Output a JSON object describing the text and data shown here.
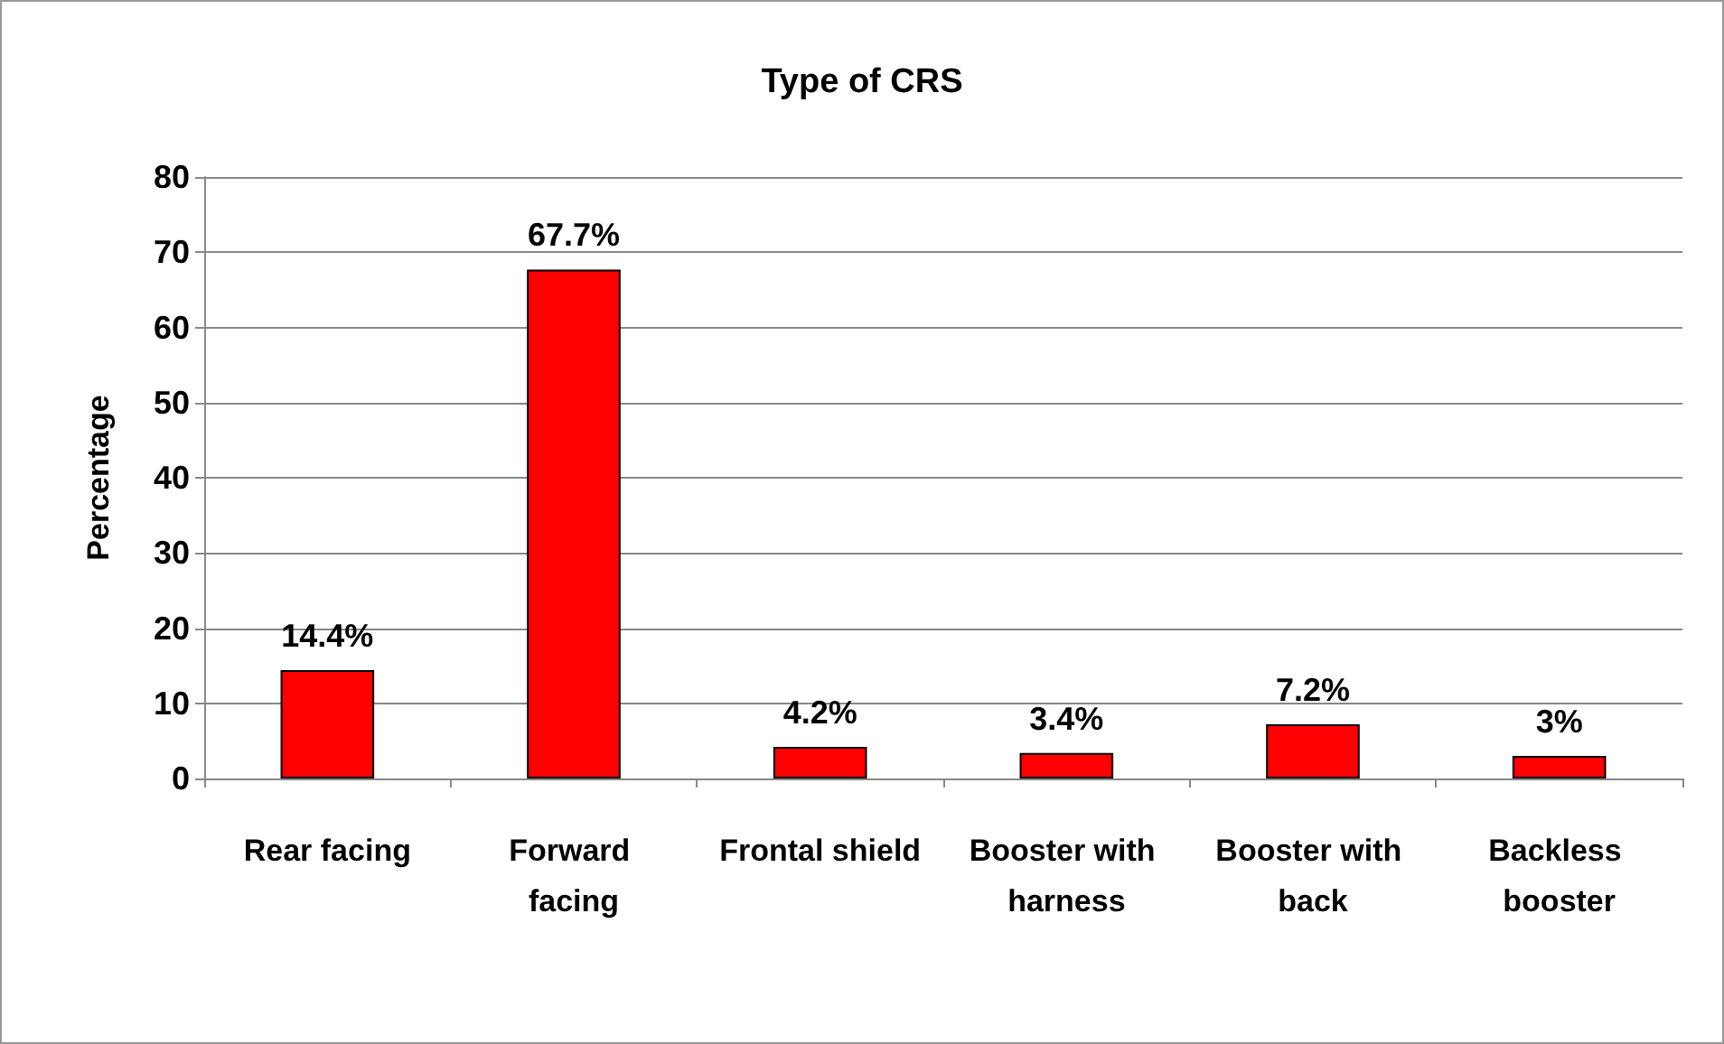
{
  "chart_data": {
    "type": "bar",
    "title": "Type of CRS",
    "ylabel": "Percentage",
    "categories": [
      "Rear facing",
      "Forward facing",
      "Frontal shield",
      "Booster with harness",
      "Booster with back",
      "Backless booster"
    ],
    "values": [
      14.4,
      67.7,
      4.2,
      3.4,
      7.2,
      3
    ],
    "value_labels": [
      "14.4%",
      "67.7%",
      "4.2%",
      "3.4%",
      "7.2%",
      "3%"
    ],
    "color": "#ff0000",
    "ylim": [
      0,
      80
    ],
    "yticks": [
      0,
      10,
      20,
      30,
      40,
      50,
      60,
      70,
      80
    ],
    "grid": "y"
  }
}
